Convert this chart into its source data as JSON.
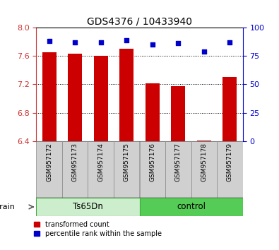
{
  "title": "GDS4376 / 10433940",
  "samples": [
    "GSM957172",
    "GSM957173",
    "GSM957174",
    "GSM957175",
    "GSM957176",
    "GSM957177",
    "GSM957178",
    "GSM957179"
  ],
  "bar_values": [
    7.65,
    7.63,
    7.6,
    7.7,
    7.21,
    7.17,
    6.41,
    7.3
  ],
  "percentile_values": [
    88,
    87,
    87,
    89,
    85,
    86,
    79,
    87
  ],
  "ylim_left": [
    6.4,
    8.0
  ],
  "ylim_right": [
    0,
    100
  ],
  "yticks_left": [
    6.4,
    6.8,
    7.2,
    7.6,
    8.0
  ],
  "yticks_right": [
    0,
    25,
    50,
    75,
    100
  ],
  "bar_color": "#cc0000",
  "dot_color": "#0000cc",
  "group1_label": "Ts65Dn",
  "group2_label": "control",
  "group1_bg": "#cceecc",
  "group2_bg": "#55cc55",
  "group_border": "#44aa44",
  "label_bg": "#d0d0d0",
  "strain_label": "strain",
  "legend_bar_label": "transformed count",
  "legend_dot_label": "percentile rank within the sample",
  "base_value": 6.4,
  "left_tick_color": "#cc3333",
  "right_tick_color": "#0000cc"
}
